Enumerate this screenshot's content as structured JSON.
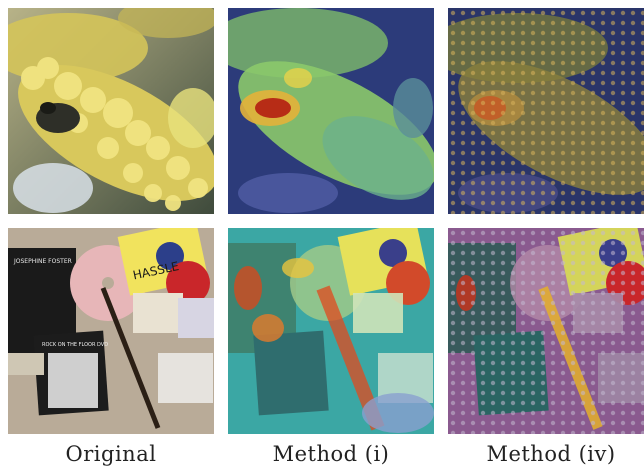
{
  "figure": {
    "columns": [
      {
        "caption": "Original"
      },
      {
        "caption": "Method (i)"
      },
      {
        "caption": "Method (iv)"
      }
    ],
    "panels": {
      "album_text": {
        "title_left": "JOSEPHINE FOSTER",
        "dvd_title": "ROCK ON THE FLOOR DVD",
        "hassle": "HASSLE"
      }
    },
    "colors": {
      "flower_yellow": "#d9cf5a",
      "flower_shadow": "#6f7a2f",
      "background_blue": "#2c3b7a",
      "heat_red": "#b21d12",
      "heat_cyan": "#46b9b0",
      "overlay_pink": "#8a5a8f"
    }
  }
}
